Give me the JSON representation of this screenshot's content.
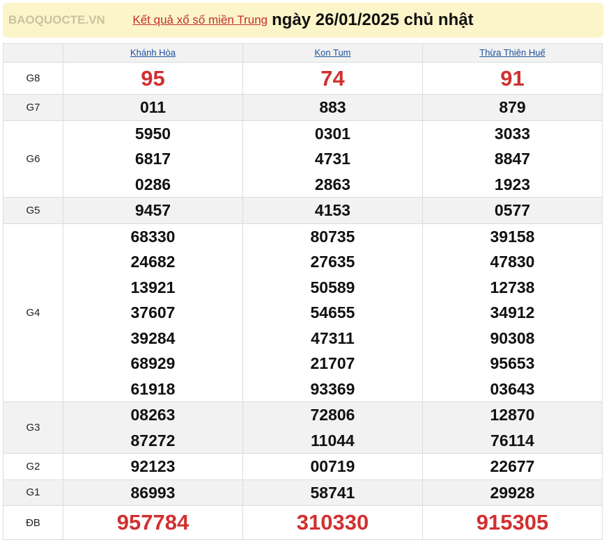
{
  "header": {
    "link": "Kết quả xổ số miền Trung",
    "date": "ngày 26/01/2025 chủ nhật"
  },
  "columns": [
    "Khánh Hòa",
    "Kon Tum",
    "Thừa Thiên Huế"
  ],
  "rows": [
    {
      "label": "G8",
      "values": [
        [
          "95"
        ],
        [
          "74"
        ],
        [
          "91"
        ]
      ]
    },
    {
      "label": "G7",
      "values": [
        [
          "011"
        ],
        [
          "883"
        ],
        [
          "879"
        ]
      ]
    },
    {
      "label": "G6",
      "values": [
        [
          "5950",
          "6817",
          "0286"
        ],
        [
          "0301",
          "4731",
          "2863"
        ],
        [
          "3033",
          "8847",
          "1923"
        ]
      ]
    },
    {
      "label": "G5",
      "values": [
        [
          "9457"
        ],
        [
          "4153"
        ],
        [
          "0577"
        ]
      ]
    },
    {
      "label": "G4",
      "values": [
        [
          "68330",
          "24682",
          "13921",
          "37607",
          "39284",
          "68929",
          "61918"
        ],
        [
          "80735",
          "27635",
          "50589",
          "54655",
          "47311",
          "21707",
          "93369"
        ],
        [
          "39158",
          "47830",
          "12738",
          "34912",
          "90308",
          "95653",
          "03643"
        ]
      ]
    },
    {
      "label": "G3",
      "values": [
        [
          "08263",
          "87272"
        ],
        [
          "72806",
          "11044"
        ],
        [
          "12870",
          "76114"
        ]
      ]
    },
    {
      "label": "G2",
      "values": [
        [
          "92123"
        ],
        [
          "00719"
        ],
        [
          "22677"
        ]
      ]
    },
    {
      "label": "G1",
      "values": [
        [
          "86993"
        ],
        [
          "58741"
        ],
        [
          "29928"
        ]
      ]
    },
    {
      "label": "ĐB",
      "values": [
        [
          "957784"
        ],
        [
          "310330"
        ],
        [
          "915305"
        ]
      ]
    }
  ],
  "watermark": "BAOQUOCTE.VN",
  "colors": {
    "accent": "#d03030",
    "header_bg": "#fbf5c9",
    "link": "#1b4f9c"
  }
}
